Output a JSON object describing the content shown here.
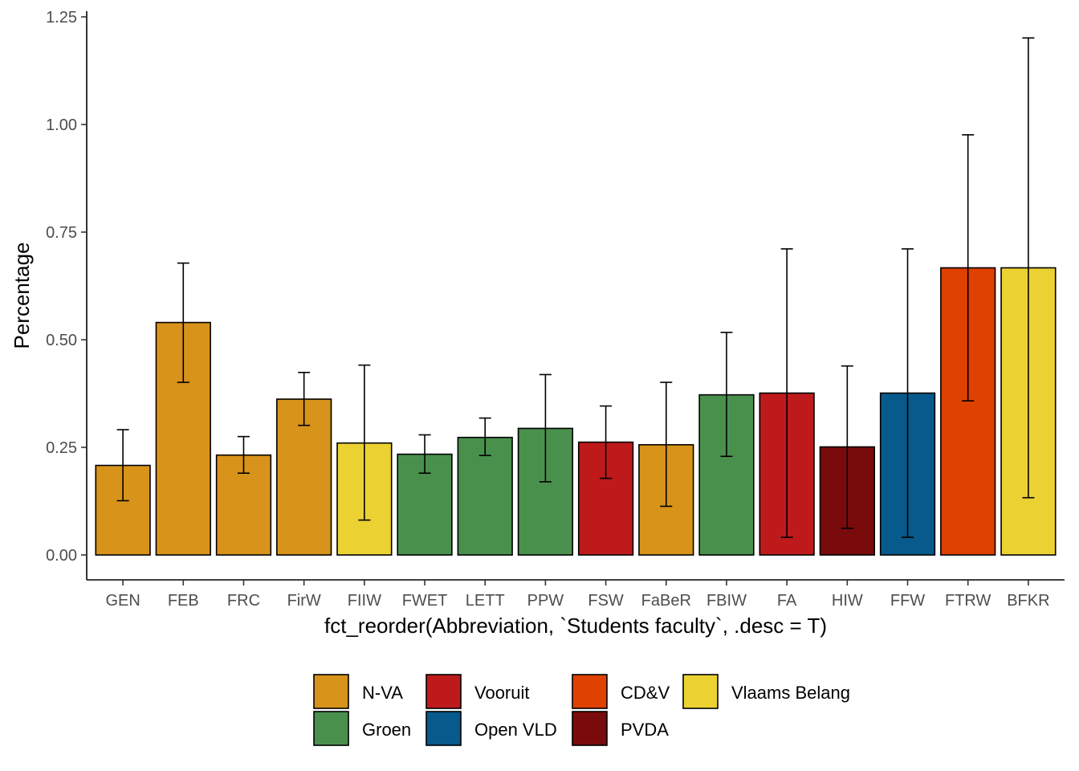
{
  "chart_data": {
    "type": "bar",
    "title": "",
    "xlabel": "fct_reorder(Abbreviation, `Students faculty`, .desc = T)",
    "ylabel": "Percentage",
    "ylim": [
      -0.06,
      1.255
    ],
    "yticks": [
      0.0,
      0.25,
      0.5,
      0.75,
      1.0,
      1.25
    ],
    "ytick_labels": [
      "0.00",
      "0.25",
      "0.50",
      "0.75",
      "1.00",
      "1.25"
    ],
    "grid": false,
    "legend_position": "bottom",
    "categories": [
      "GEN",
      "FEB",
      "FRC",
      "FirW",
      "FIIW",
      "FWET",
      "LETT",
      "PPW",
      "FSW",
      "FaBeR",
      "FBIW",
      "FA",
      "HIW",
      "FFW",
      "FTRW",
      "BFKR"
    ],
    "values": [
      0.208,
      0.54,
      0.232,
      0.362,
      0.26,
      0.234,
      0.273,
      0.294,
      0.262,
      0.256,
      0.372,
      0.376,
      0.251,
      0.376,
      0.667,
      0.667
    ],
    "error_low": [
      0.126,
      0.401,
      0.19,
      0.301,
      0.081,
      0.19,
      0.231,
      0.17,
      0.178,
      0.113,
      0.229,
      0.041,
      0.062,
      0.041,
      0.358,
      0.133
    ],
    "error_high": [
      0.291,
      0.678,
      0.275,
      0.424,
      0.441,
      0.279,
      0.318,
      0.419,
      0.346,
      0.401,
      0.517,
      0.711,
      0.439,
      0.711,
      0.976,
      1.201
    ],
    "party": [
      "N-VA",
      "N-VA",
      "N-VA",
      "N-VA",
      "Vlaams Belang",
      "Groen",
      "Groen",
      "Groen",
      "Vooruit",
      "N-VA",
      "Groen",
      "Vooruit",
      "PVDA",
      "Open VLD",
      "CD&V",
      "Vlaams Belang"
    ],
    "legend": [
      {
        "name": "N-VA",
        "color": "#D8931A"
      },
      {
        "name": "Groen",
        "color": "#4A904D"
      },
      {
        "name": "Vooruit",
        "color": "#BE1A1C"
      },
      {
        "name": "Open VLD",
        "color": "#075A8B"
      },
      {
        "name": "CD&V",
        "color": "#DE4100"
      },
      {
        "name": "PVDA",
        "color": "#7A0B0C"
      },
      {
        "name": "Vlaams Belang",
        "color": "#EBD232"
      }
    ]
  }
}
